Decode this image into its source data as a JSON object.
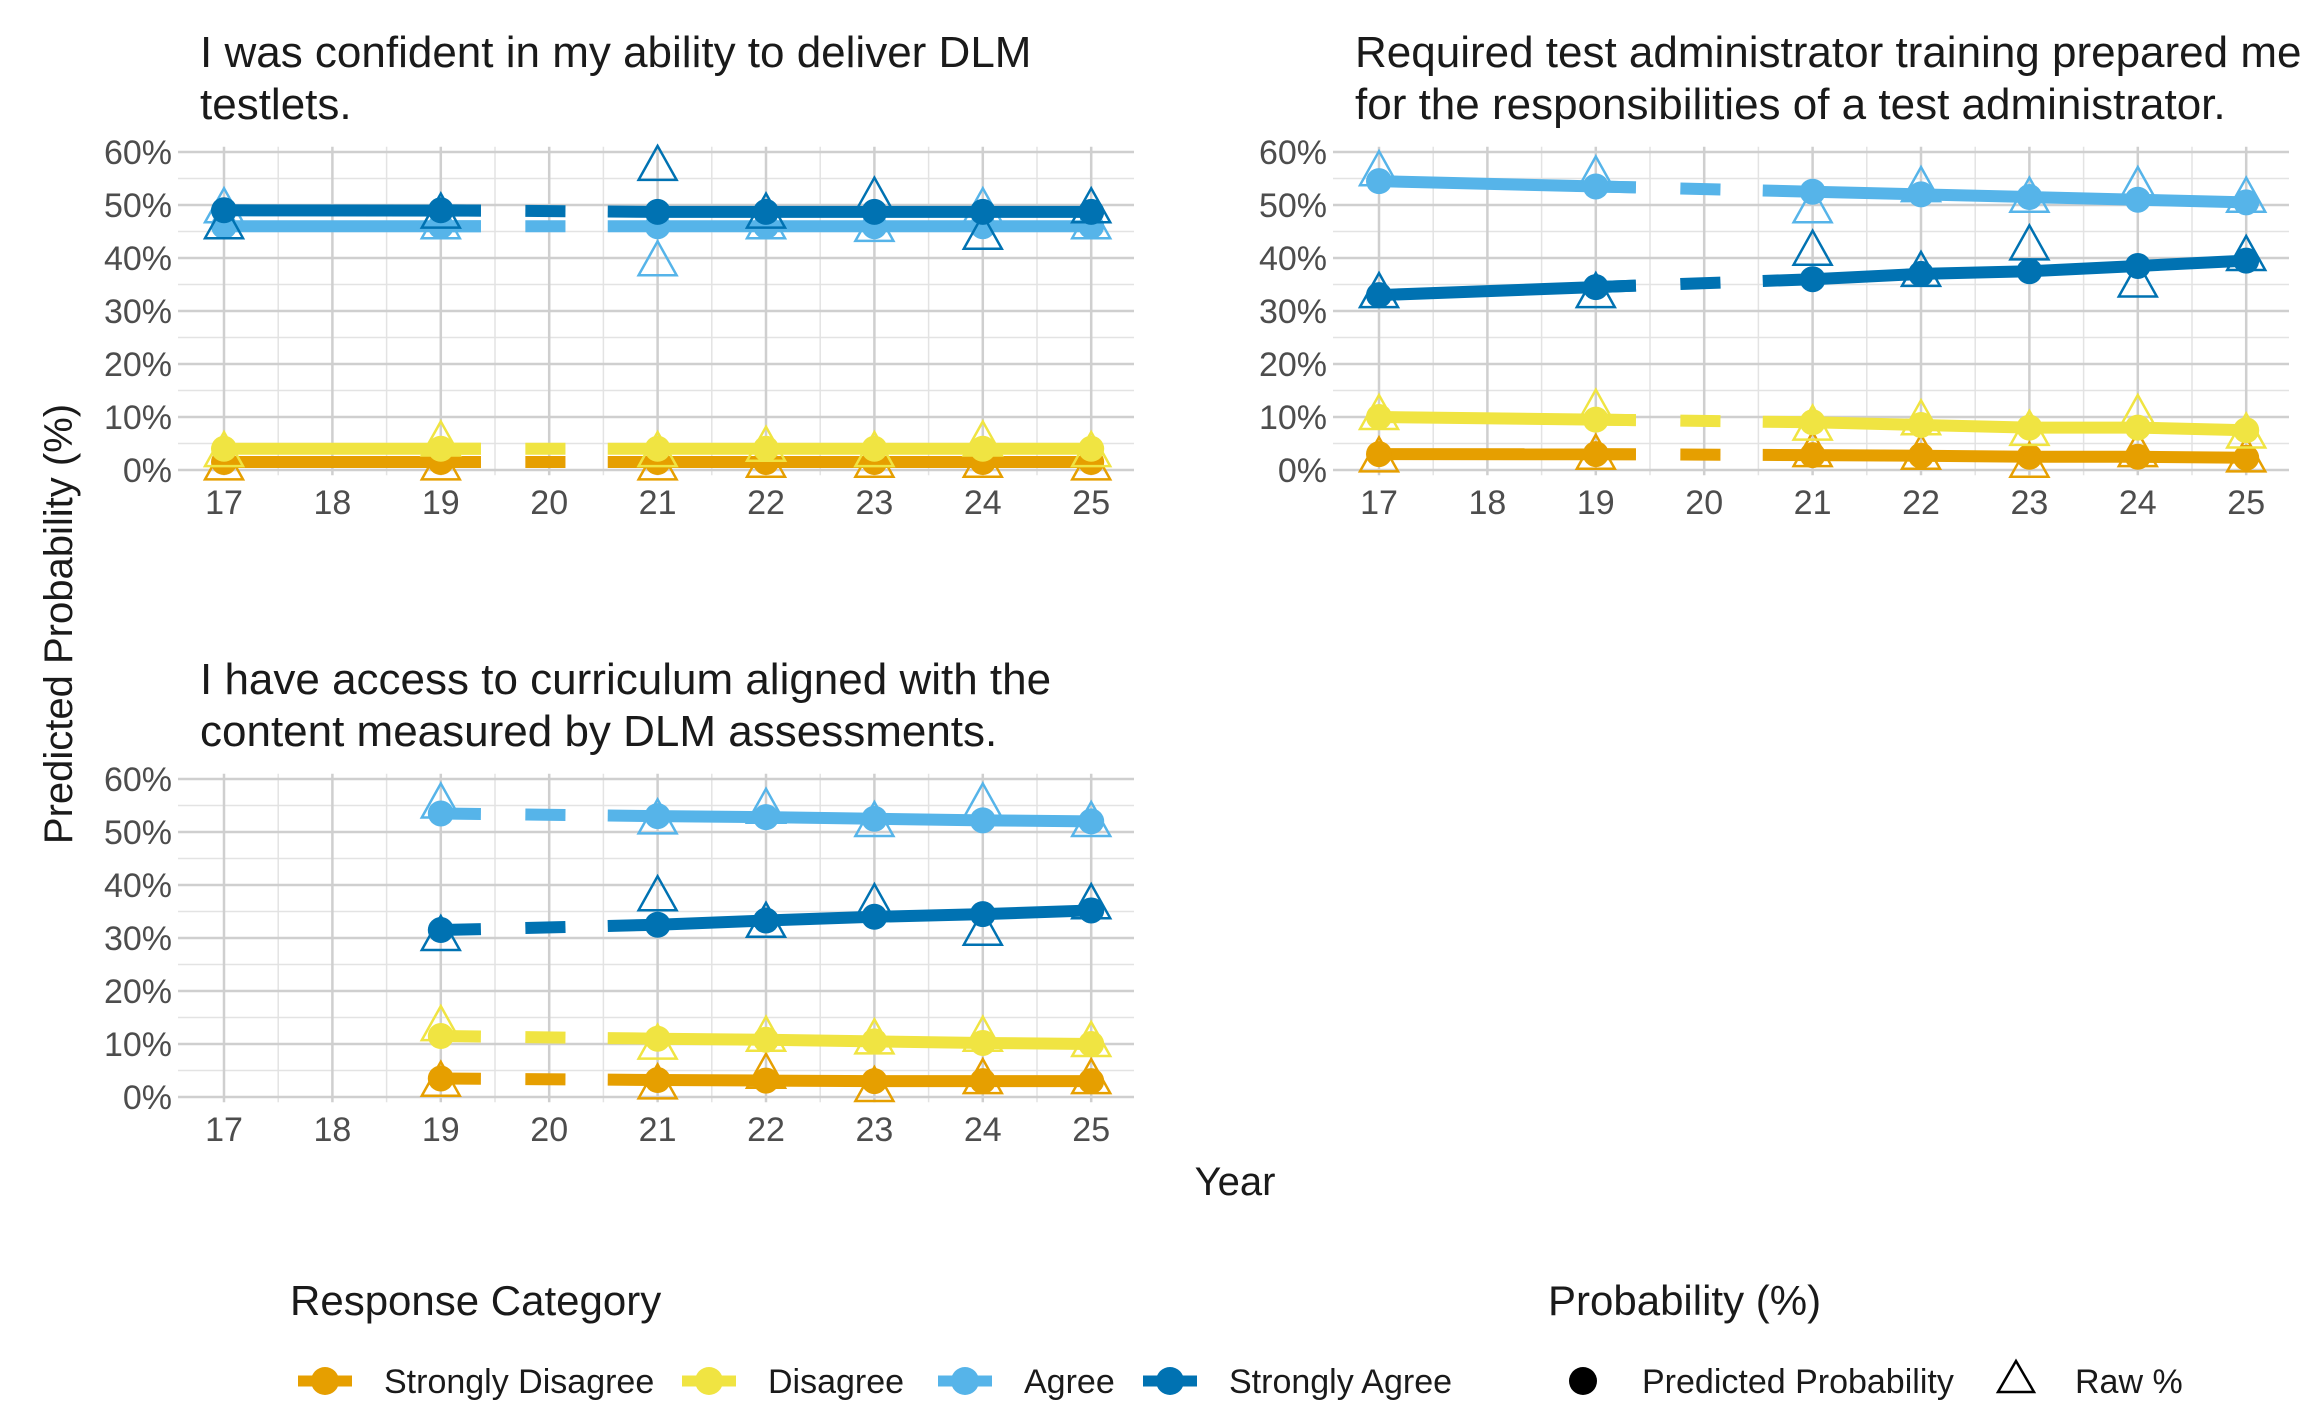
{
  "chart_data": [
    {
      "type": "line",
      "title_lines": [
        "I was confident in my ability to deliver DLM",
        "testlets."
      ],
      "x": [
        17,
        19,
        21,
        22,
        23,
        24,
        25
      ],
      "xticks": [
        "17",
        "18",
        "19",
        "20",
        "21",
        "22",
        "23",
        "24",
        "25"
      ],
      "yticks": [
        "0%",
        "10%",
        "20%",
        "30%",
        "40%",
        "50%",
        "60%"
      ],
      "ylim": [
        0,
        60
      ],
      "series": [
        {
          "name": "Strongly Disagree",
          "predicted": [
            1.5,
            1.5,
            1.5,
            1.5,
            1.5,
            1.5,
            1.5
          ],
          "raw": [
            0.5,
            0.5,
            0.5,
            1,
            1,
            1,
            0.5
          ]
        },
        {
          "name": "Disagree",
          "predicted": [
            4,
            4,
            4,
            4,
            4,
            4,
            4
          ],
          "raw": [
            3,
            5,
            3,
            4,
            3,
            5,
            3
          ]
        },
        {
          "name": "Agree",
          "predicted": [
            46,
            46,
            46,
            46,
            46,
            46,
            46
          ],
          "raw": [
            49,
            46,
            39,
            46,
            45.5,
            49,
            46
          ]
        },
        {
          "name": "Strongly Agree",
          "predicted": [
            49,
            49,
            48.7,
            48.7,
            48.7,
            48.7,
            48.7
          ],
          "raw": [
            46,
            48,
            57,
            48,
            51,
            44,
            49
          ]
        }
      ]
    },
    {
      "type": "line",
      "title_lines": [
        "Required test administrator training prepared me",
        "for the responsibilities of a test administrator."
      ],
      "x": [
        17,
        19,
        21,
        22,
        23,
        24,
        25
      ],
      "xticks": [
        "17",
        "18",
        "19",
        "20",
        "21",
        "22",
        "23",
        "24",
        "25"
      ],
      "yticks": [
        "0%",
        "10%",
        "20%",
        "30%",
        "40%",
        "50%",
        "60%"
      ],
      "ylim": [
        0,
        60
      ],
      "series": [
        {
          "name": "Strongly Disagree",
          "predicted": [
            3,
            3,
            2.8,
            2.7,
            2.5,
            2.5,
            2.3
          ],
          "raw": [
            2,
            2.5,
            3,
            2.5,
            1,
            3,
            2
          ]
        },
        {
          "name": "Disagree",
          "predicted": [
            10,
            9.5,
            9,
            8.5,
            8,
            8,
            7.5
          ],
          "raw": [
            10,
            11,
            8,
            9,
            7,
            10,
            6.5
          ]
        },
        {
          "name": "Agree",
          "predicted": [
            54.5,
            53.5,
            52.5,
            52,
            51.5,
            51,
            50.5
          ],
          "raw": [
            56,
            55,
            49,
            53,
            51,
            53,
            51
          ]
        },
        {
          "name": "Strongly Agree",
          "predicted": [
            33,
            34.5,
            36,
            37,
            37.5,
            38.5,
            39.5
          ],
          "raw": [
            33,
            33,
            41,
            37,
            42,
            35,
            40
          ]
        }
      ]
    },
    {
      "type": "line",
      "title_lines": [
        "I have access to curriculum aligned with the",
        "content measured by DLM assessments."
      ],
      "x": [
        19,
        21,
        22,
        23,
        24,
        25
      ],
      "xticks": [
        "17",
        "18",
        "19",
        "20",
        "21",
        "22",
        "23",
        "24",
        "25"
      ],
      "yticks": [
        "0%",
        "10%",
        "20%",
        "30%",
        "40%",
        "50%",
        "60%"
      ],
      "ylim": [
        0,
        60
      ],
      "series": [
        {
          "name": "Strongly Disagree",
          "predicted": [
            3.5,
            3.2,
            3.1,
            3,
            3,
            3
          ],
          "raw": [
            2.5,
            2,
            4,
            1.5,
            3,
            3
          ]
        },
        {
          "name": "Disagree",
          "predicted": [
            11.5,
            11,
            10.8,
            10.5,
            10.2,
            10
          ],
          "raw": [
            13,
            9.5,
            11,
            10.5,
            11,
            10
          ]
        },
        {
          "name": "Agree",
          "predicted": [
            53.5,
            53,
            52.8,
            52.5,
            52.2,
            52
          ],
          "raw": [
            55,
            52,
            54,
            51.5,
            55,
            51.5
          ]
        },
        {
          "name": "Strongly Agree",
          "predicted": [
            31.5,
            32.5,
            33.3,
            34,
            34.5,
            35.2
          ],
          "raw": [
            30,
            37.5,
            32.5,
            36,
            31,
            36
          ]
        }
      ]
    }
  ],
  "axes": {
    "ylabel": "Predicted Probability (%)",
    "xlabel": "Year"
  },
  "legend": {
    "response_title": "Response Category",
    "response_items": [
      "Strongly Disagree",
      "Disagree",
      "Agree",
      "Strongly Agree"
    ],
    "prob_title": "Probability (%)",
    "prob_items": [
      "Predicted Probability",
      "Raw %"
    ],
    "placement": "bottom"
  },
  "colors": {
    "Strongly Disagree": "#E69F00",
    "Disagree": "#F0E442",
    "Agree": "#56B4E9",
    "Strongly Agree": "#0072B2"
  },
  "grid": true,
  "gap_note_years_dashed": [
    19,
    21
  ]
}
